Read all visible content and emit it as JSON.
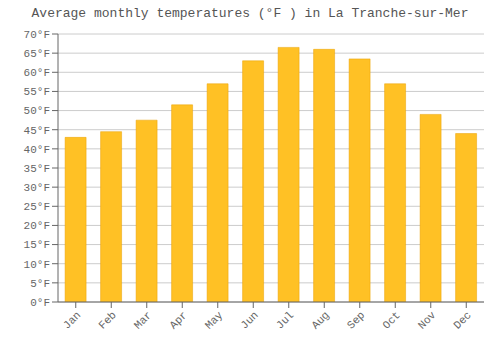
{
  "chart_data": {
    "type": "bar",
    "title": "Average monthly temperatures (°F ) in La Tranche-sur-Mer",
    "categories": [
      "Jan",
      "Feb",
      "Mar",
      "Apr",
      "May",
      "Jun",
      "Jul",
      "Aug",
      "Sep",
      "Oct",
      "Nov",
      "Dec"
    ],
    "values": [
      43,
      44.5,
      47.5,
      51.5,
      57,
      63,
      66.5,
      66,
      63.5,
      57,
      49,
      44
    ],
    "color": "#FFC125",
    "ylim": [
      0,
      70
    ],
    "yticks": [
      {
        "value": 0,
        "label": "0°F"
      },
      {
        "value": 5,
        "label": "5°F"
      },
      {
        "value": 10,
        "label": "10°F"
      },
      {
        "value": 15,
        "label": "15°F"
      },
      {
        "value": 20,
        "label": "20°F"
      },
      {
        "value": 25,
        "label": "25°F"
      },
      {
        "value": 30,
        "label": "30°F"
      },
      {
        "value": 35,
        "label": "35°F"
      },
      {
        "value": 40,
        "label": "40°F"
      },
      {
        "value": 45,
        "label": "45°F"
      },
      {
        "value": 50,
        "label": "50°F"
      },
      {
        "value": 55,
        "label": "55°F"
      },
      {
        "value": 60,
        "label": "60°F"
      },
      {
        "value": 65,
        "label": "65°F"
      },
      {
        "value": 70,
        "label": "70°F"
      }
    ],
    "grid": true
  }
}
